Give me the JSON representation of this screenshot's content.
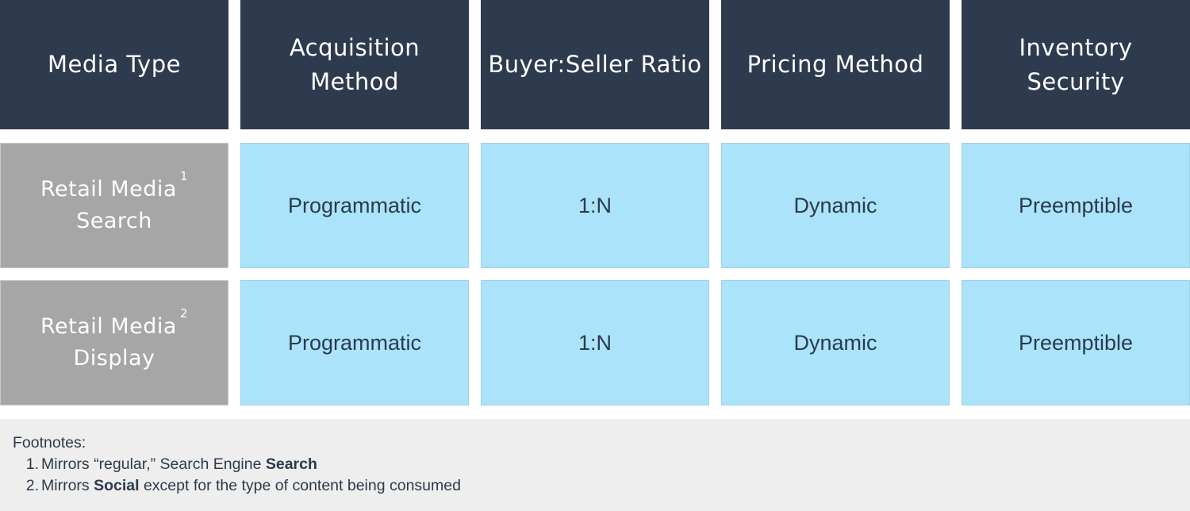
{
  "headers": [
    {
      "line1": "Media Type",
      "line2": ""
    },
    {
      "line1": "Acquisition",
      "line2": "Method"
    },
    {
      "line1": "Buyer:Seller Ratio",
      "line2": ""
    },
    {
      "line1": "Pricing Method",
      "line2": ""
    },
    {
      "line1": "Inventory",
      "line2": "Security"
    }
  ],
  "rows": [
    {
      "label_line1": "Retail Media",
      "label_sup": "1",
      "label_line2": "Search",
      "cells": [
        "Programmatic",
        "1:N",
        "Dynamic",
        "Preemptible"
      ]
    },
    {
      "label_line1": "Retail Media",
      "label_sup": "2",
      "label_line2": "Display",
      "cells": [
        "Programmatic",
        "1:N",
        "Dynamic",
        "Preemptible"
      ]
    }
  ],
  "footnotes": {
    "title": "Footnotes:",
    "items": [
      {
        "num": "1.",
        "pre": "Mirrors “regular,” Search Engine ",
        "bold": "Search",
        "post": ""
      },
      {
        "num": "2.",
        "pre": "Mirrors ",
        "bold": "Social",
        "post": " except for the type of content being consumed"
      }
    ]
  },
  "colors": {
    "header_bg": "#2e3b4e",
    "label_bg": "#a6a6a6",
    "cell_bg": "#aae3fa",
    "footnote_bg": "#eeeeee",
    "text_dark": "#2b3a4c"
  }
}
